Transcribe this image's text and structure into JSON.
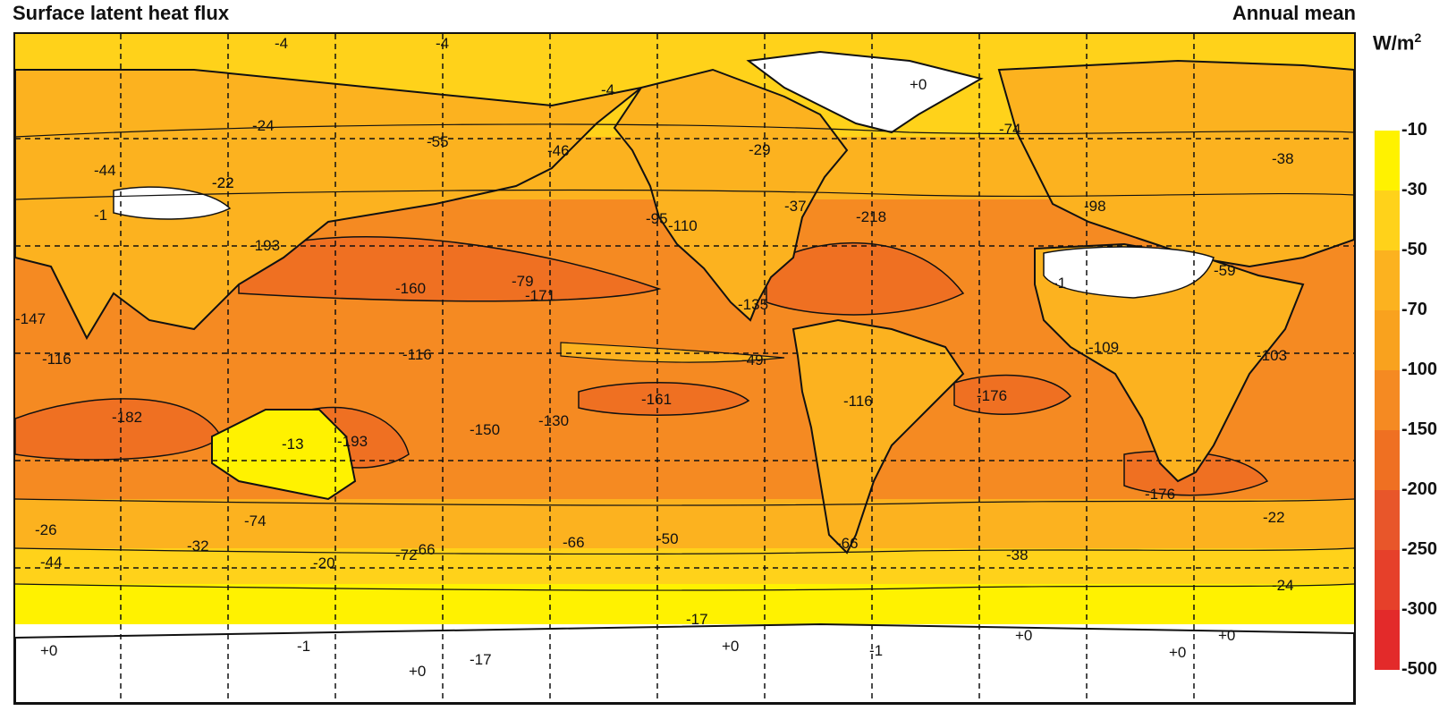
{
  "title": "Surface latent heat flux",
  "subtitle": "Annual mean",
  "units": {
    "base": "W/m",
    "sup": "2"
  },
  "legend": {
    "labels": [
      "-10",
      "-30",
      "-50",
      "-70",
      "-100",
      "-150",
      "-200",
      "-250",
      "-300",
      "-500"
    ],
    "colors": [
      "#fff200",
      "#ffd21a",
      "#fcb21f",
      "#f9a21e",
      "#f58a22",
      "#ef7022",
      "#e8562a",
      "#e6402a",
      "#e32a2a"
    ]
  },
  "colors": {
    "land_dry": "#ffffff",
    "coast": "#111111",
    "grid": "#111111"
  },
  "contour_labels": [
    "-4",
    "-4",
    "-4",
    "+0",
    "-24",
    "-22",
    "-55",
    "-46",
    "-29",
    "-74",
    "-44",
    "-22",
    "-1",
    "-38",
    "-95",
    "-110",
    "-37",
    "-218",
    "-98",
    "-193",
    "-160",
    "-79",
    "-171",
    "-1",
    "-59",
    "-147",
    "-135",
    "-116",
    "-116",
    "-49",
    "-103",
    "-109",
    "-182",
    "-161",
    "-176",
    "-150",
    "-130",
    "-13",
    "-193",
    "-116",
    "-176",
    "-26",
    "-74",
    "-32",
    "-44",
    "-20",
    "-72",
    "-66",
    "-50",
    "-38",
    "-22",
    "-24",
    "-66",
    "-17",
    "+0",
    "-1",
    "+0",
    "+0",
    "-1",
    "+0",
    "+0",
    "+0",
    "-17",
    "-66"
  ]
}
